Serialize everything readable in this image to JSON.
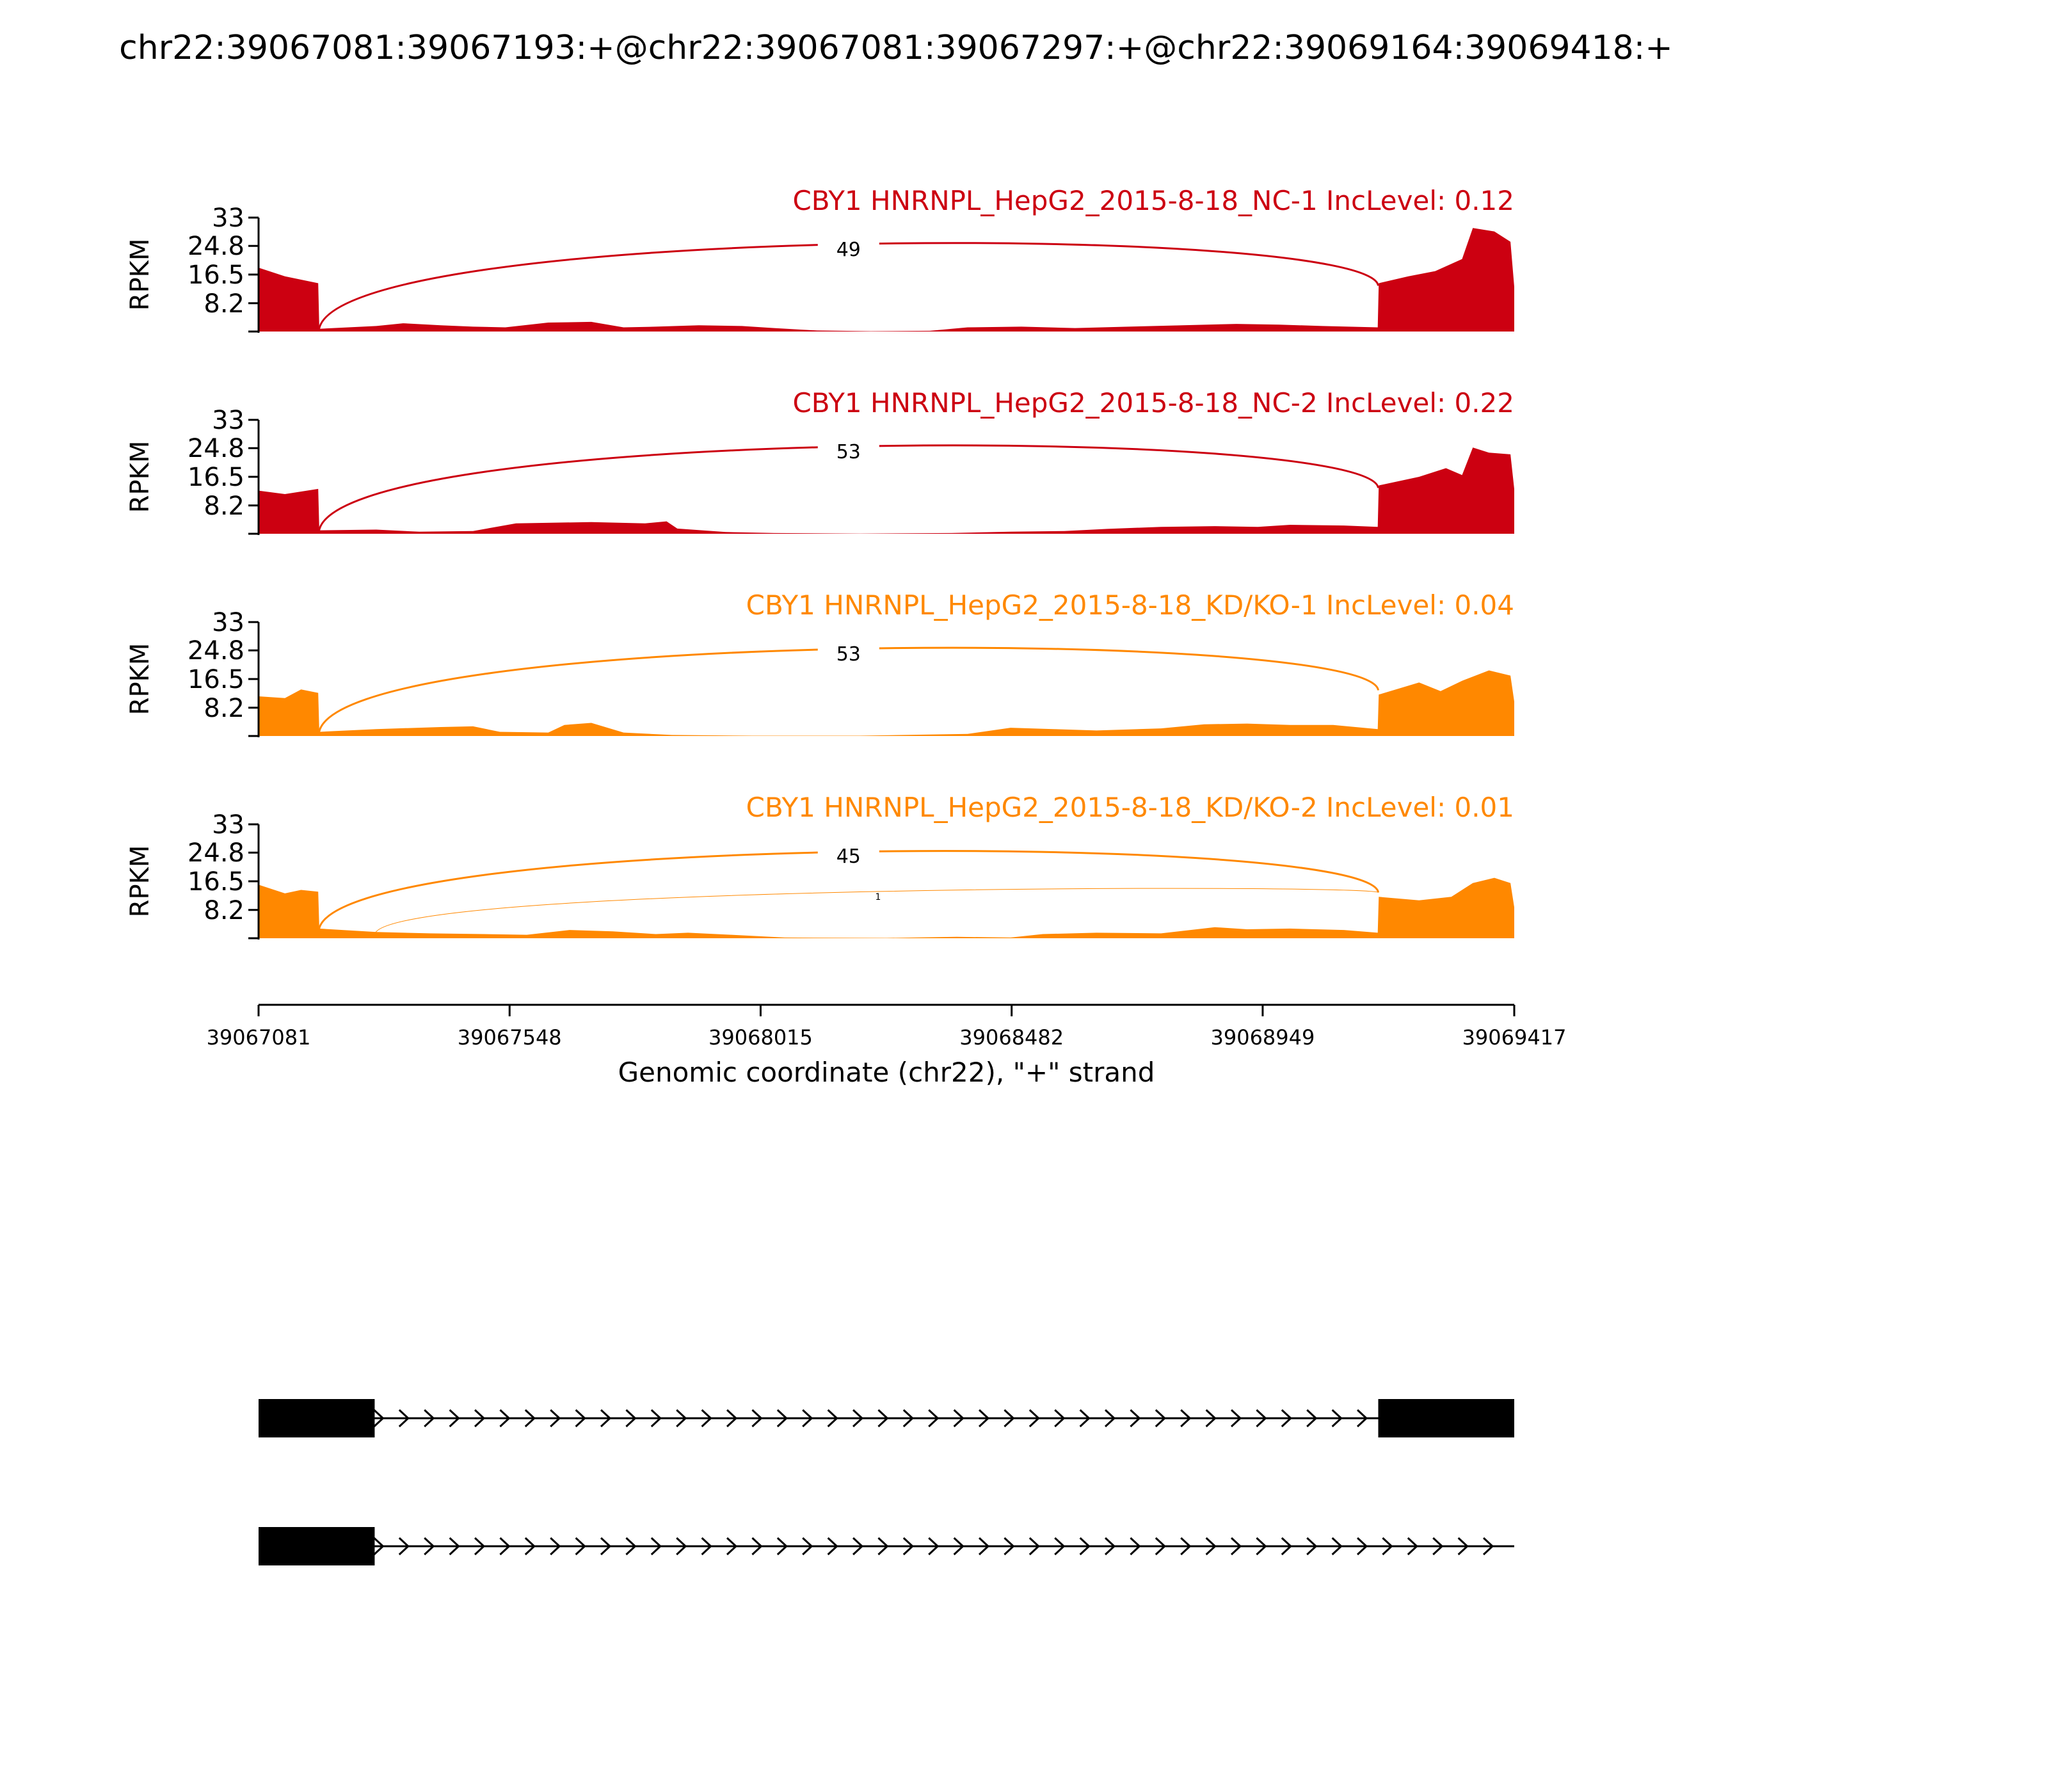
{
  "title": "chr22:39067081:39067193:+@chr22:39067081:39067297:+@chr22:39069164:39069418:+",
  "chart_data": {
    "type": "area",
    "xlabel": "Genomic coordinate (chr22), \"+\" strand",
    "ylabel": "RPKM",
    "xlim": [
      39067081,
      39069417
    ],
    "x_ticks": [
      "39067081",
      "39067548",
      "39068015",
      "39068482",
      "39068949",
      "39069417"
    ],
    "ylim": [
      0,
      33
    ],
    "y_ticks": [
      "8.2",
      "16.5",
      "24.8",
      "33"
    ],
    "grid": false,
    "samples": [
      {
        "label": "CBY1 HNRNPL_HepG2_2015-8-18_NC-1 IncLevel: 0.12",
        "color": "#cc0011",
        "junctions": [
          {
            "start": 39067193,
            "end": 39069164,
            "count": "49"
          }
        ],
        "coverage": [
          [
            39067081,
            18.5
          ],
          [
            39067130,
            16
          ],
          [
            39067192,
            14
          ],
          [
            39067194,
            0.8
          ],
          [
            39067300,
            1.6
          ],
          [
            39067350,
            2.4
          ],
          [
            39067420,
            1.8
          ],
          [
            39067480,
            1.4
          ],
          [
            39067540,
            1.2
          ],
          [
            39067620,
            2.6
          ],
          [
            39067700,
            2.8
          ],
          [
            39067760,
            1.2
          ],
          [
            39067820,
            1.4
          ],
          [
            39067900,
            1.8
          ],
          [
            39067980,
            1.6
          ],
          [
            39068040,
            1.0
          ],
          [
            39068120,
            0.3
          ],
          [
            39068220,
            0.1
          ],
          [
            39068330,
            0.2
          ],
          [
            39068400,
            1.2
          ],
          [
            39068500,
            1.4
          ],
          [
            39068600,
            1.0
          ],
          [
            39068700,
            1.4
          ],
          [
            39068800,
            1.8
          ],
          [
            39068900,
            2.2
          ],
          [
            39068980,
            2.0
          ],
          [
            39069060,
            1.6
          ],
          [
            39069163,
            1.2
          ],
          [
            39069165,
            14
          ],
          [
            39069220,
            16
          ],
          [
            39069270,
            17.5
          ],
          [
            39069320,
            21
          ],
          [
            39069340,
            30
          ],
          [
            39069380,
            29
          ],
          [
            39069410,
            26
          ],
          [
            39069417,
            13
          ]
        ]
      },
      {
        "label": "CBY1 HNRNPL_HepG2_2015-8-18_NC-2 IncLevel: 0.22",
        "color": "#cc0011",
        "junctions": [
          {
            "start": 39067193,
            "end": 39069164,
            "count": "53"
          }
        ],
        "coverage": [
          [
            39067081,
            12.5
          ],
          [
            39067130,
            11.5
          ],
          [
            39067192,
            13
          ],
          [
            39067194,
            1.0
          ],
          [
            39067300,
            1.2
          ],
          [
            39067380,
            0.6
          ],
          [
            39067480,
            0.8
          ],
          [
            39067560,
            3.0
          ],
          [
            39067700,
            3.4
          ],
          [
            39067800,
            3.0
          ],
          [
            39067840,
            3.6
          ],
          [
            39067860,
            1.5
          ],
          [
            39067950,
            0.5
          ],
          [
            39068040,
            0.2
          ],
          [
            39068200,
            0.05
          ],
          [
            39068370,
            0.2
          ],
          [
            39068480,
            0.6
          ],
          [
            39068580,
            0.8
          ],
          [
            39068660,
            1.4
          ],
          [
            39068760,
            2.0
          ],
          [
            39068860,
            2.2
          ],
          [
            39068940,
            2.0
          ],
          [
            39069000,
            2.6
          ],
          [
            39069100,
            2.4
          ],
          [
            39069163,
            2.0
          ],
          [
            39069165,
            14
          ],
          [
            39069240,
            16.5
          ],
          [
            39069290,
            19
          ],
          [
            39069320,
            17
          ],
          [
            39069340,
            25
          ],
          [
            39069370,
            23.5
          ],
          [
            39069410,
            23
          ],
          [
            39069417,
            13
          ]
        ]
      },
      {
        "label": "CBY1 HNRNPL_HepG2_2015-8-18_KD/KO-1 IncLevel: 0.04",
        "color": "#ff8800",
        "junctions": [
          {
            "start": 39067193,
            "end": 39069164,
            "count": "53"
          }
        ],
        "coverage": [
          [
            39067081,
            11.5
          ],
          [
            39067130,
            11
          ],
          [
            39067160,
            13.5
          ],
          [
            39067192,
            12.5
          ],
          [
            39067194,
            1.2
          ],
          [
            39067300,
            2.0
          ],
          [
            39067420,
            2.6
          ],
          [
            39067480,
            2.8
          ],
          [
            39067530,
            1.2
          ],
          [
            39067620,
            1.0
          ],
          [
            39067650,
            3.2
          ],
          [
            39067700,
            3.8
          ],
          [
            39067760,
            1.0
          ],
          [
            39067850,
            0.3
          ],
          [
            39068000,
            0.1
          ],
          [
            39068200,
            0.1
          ],
          [
            39068400,
            0.6
          ],
          [
            39068480,
            2.4
          ],
          [
            39068560,
            2.0
          ],
          [
            39068640,
            1.6
          ],
          [
            39068760,
            2.2
          ],
          [
            39068840,
            3.4
          ],
          [
            39068920,
            3.6
          ],
          [
            39069000,
            3.2
          ],
          [
            39069080,
            3.2
          ],
          [
            39069163,
            2.0
          ],
          [
            39069165,
            12
          ],
          [
            39069240,
            15.5
          ],
          [
            39069280,
            13
          ],
          [
            39069320,
            16
          ],
          [
            39069370,
            19
          ],
          [
            39069410,
            17.5
          ],
          [
            39069417,
            10
          ]
        ]
      },
      {
        "label": "CBY1 HNRNPL_HepG2_2015-8-18_KD/KO-2 IncLevel: 0.01",
        "color": "#ff8800",
        "junctions": [
          {
            "start": 39067193,
            "end": 39069164,
            "count": "45"
          },
          {
            "start": 39067297,
            "end": 39069164,
            "count": "1"
          }
        ],
        "coverage": [
          [
            39067081,
            15.5
          ],
          [
            39067130,
            13
          ],
          [
            39067160,
            14
          ],
          [
            39067192,
            13.5
          ],
          [
            39067194,
            2.8
          ],
          [
            39067300,
            1.8
          ],
          [
            39067400,
            1.4
          ],
          [
            39067500,
            1.2
          ],
          [
            39067580,
            1.0
          ],
          [
            39067660,
            2.4
          ],
          [
            39067740,
            2.0
          ],
          [
            39067820,
            1.2
          ],
          [
            39067880,
            1.6
          ],
          [
            39067960,
            1.0
          ],
          [
            39068060,
            0.2
          ],
          [
            39068250,
            0.1
          ],
          [
            39068380,
            0.4
          ],
          [
            39068480,
            0.2
          ],
          [
            39068540,
            1.2
          ],
          [
            39068640,
            1.6
          ],
          [
            39068760,
            1.4
          ],
          [
            39068860,
            3.2
          ],
          [
            39068920,
            2.6
          ],
          [
            39069000,
            2.8
          ],
          [
            39069100,
            2.4
          ],
          [
            39069163,
            1.6
          ],
          [
            39069165,
            12
          ],
          [
            39069240,
            11
          ],
          [
            39069300,
            12
          ],
          [
            39069340,
            16
          ],
          [
            39069380,
            17.5
          ],
          [
            39069410,
            16
          ],
          [
            39069417,
            9
          ]
        ]
      }
    ],
    "transcripts": [
      {
        "exons": [
          [
            39067081,
            39067297
          ],
          [
            39069164,
            39069417
          ]
        ],
        "strand": "+"
      },
      {
        "exons": [
          [
            39067081,
            39067297
          ]
        ],
        "strand": "+",
        "line_end": 39069417
      }
    ]
  }
}
